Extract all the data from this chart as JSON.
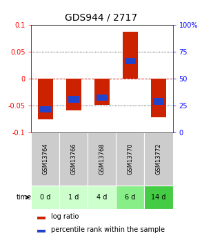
{
  "title": "GDS944 / 2717",
  "samples": [
    "GSM13764",
    "GSM13766",
    "GSM13768",
    "GSM13770",
    "GSM13772"
  ],
  "time_labels": [
    "0 d",
    "1 d",
    "4 d",
    "6 d",
    "14 d"
  ],
  "log_ratios": [
    -0.075,
    -0.058,
    -0.048,
    0.088,
    -0.072
  ],
  "percentile_values": [
    -0.057,
    -0.038,
    -0.035,
    0.033,
    -0.042
  ],
  "ylim": [
    -0.1,
    0.1
  ],
  "yticks": [
    -0.1,
    -0.05,
    0,
    0.05,
    0.1
  ],
  "ytick_labels": [
    "-0.1",
    "-0.05",
    "0",
    "0.05",
    "0.1"
  ],
  "right_yticks": [
    0,
    25,
    50,
    75,
    100
  ],
  "right_ytick_labels": [
    "0",
    "25",
    "50",
    "75",
    "100%"
  ],
  "bar_color": "#cc2200",
  "blue_color": "#2244cc",
  "zero_line_color": "#cc2222",
  "time_row_colors": [
    "#ccffcc",
    "#ccffcc",
    "#ccffcc",
    "#88ee88",
    "#44cc44"
  ],
  "sample_row_color": "#cccccc",
  "bar_width": 0.55,
  "title_fontsize": 10,
  "tick_fontsize": 7,
  "legend_fontsize": 7
}
